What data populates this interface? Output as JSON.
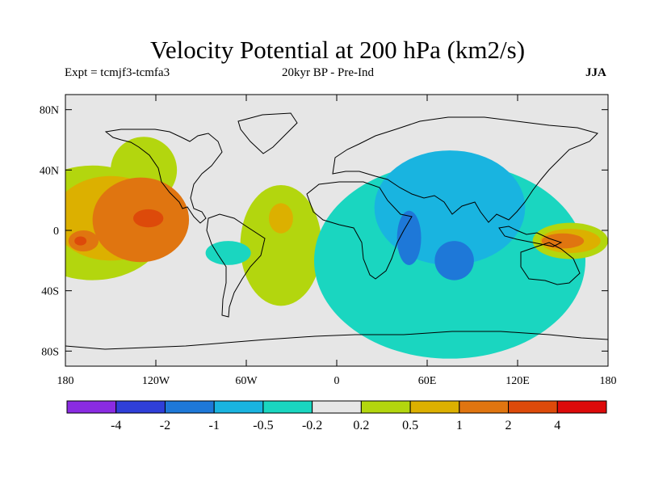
{
  "chart_data": {
    "type": "heatmap",
    "title": "Velocity Potential at 200 hPa (km2/s)",
    "subtitle_left": "Expt = tcmjf3-tcmfa3",
    "subtitle_center": "20kyr BP - Pre-Ind",
    "subtitle_right": "JJA",
    "xlim": [
      -180,
      180
    ],
    "ylim": [
      -90,
      90
    ],
    "x_ticks": [
      {
        "value": -180,
        "label": "180"
      },
      {
        "value": -120,
        "label": "120W"
      },
      {
        "value": -60,
        "label": "60W"
      },
      {
        "value": 0,
        "label": "0"
      },
      {
        "value": 60,
        "label": "60E"
      },
      {
        "value": 120,
        "label": "120E"
      },
      {
        "value": 180,
        "label": "180"
      }
    ],
    "y_ticks": [
      {
        "value": 80,
        "label": "80N"
      },
      {
        "value": 40,
        "label": "40N"
      },
      {
        "value": 0,
        "label": "0"
      },
      {
        "value": -40,
        "label": "40S"
      },
      {
        "value": -80,
        "label": "80S"
      }
    ],
    "colorbar": {
      "colors": [
        "#8a2be2",
        "#2f3fd8",
        "#1e78d8",
        "#19b4e0",
        "#1ad6c0",
        "#e6e6e6",
        "#b3d60e",
        "#dcb000",
        "#e07510",
        "#dd4a0a",
        "#dd0a0a"
      ],
      "labels": [
        "-4",
        "-2",
        "-1",
        "-0.5",
        "-0.2",
        "0.2",
        "0.5",
        "1",
        "2",
        "4"
      ]
    },
    "contour_regions": [
      {
        "lon": -162,
        "lat": 5,
        "rx": 50,
        "ry": 38,
        "value": 0.5
      },
      {
        "lon": -128,
        "lat": 40,
        "rx": 22,
        "ry": 22,
        "value": 0.5
      },
      {
        "lon": -150,
        "lat": 8,
        "rx": 38,
        "ry": 28,
        "value": 1
      },
      {
        "lon": -130,
        "lat": 7,
        "rx": 32,
        "ry": 28,
        "value": 2
      },
      {
        "lon": -168,
        "lat": -7,
        "rx": 10,
        "ry": 7,
        "value": 2
      },
      {
        "lon": -125,
        "lat": 8,
        "rx": 10,
        "ry": 6,
        "value": 4
      },
      {
        "lon": -170,
        "lat": -7,
        "rx": 4,
        "ry": 3,
        "value": 4
      },
      {
        "lon": -37,
        "lat": -10,
        "rx": 27,
        "ry": 40,
        "value": 0.5
      },
      {
        "lon": -37,
        "lat": 8,
        "rx": 8,
        "ry": 10,
        "value": 1
      },
      {
        "lon": -72,
        "lat": -15,
        "rx": 15,
        "ry": 8,
        "value": -0.2
      },
      {
        "lon": 75,
        "lat": -20,
        "rx": 90,
        "ry": 65,
        "value": -0.2
      },
      {
        "lon": 75,
        "lat": 15,
        "rx": 50,
        "ry": 38,
        "value": -0.5
      },
      {
        "lon": 48,
        "lat": -5,
        "rx": 8,
        "ry": 18,
        "value": -1
      },
      {
        "lon": 78,
        "lat": -20,
        "rx": 13,
        "ry": 13,
        "value": -1
      },
      {
        "lon": 155,
        "lat": -7,
        "rx": 25,
        "ry": 12,
        "value": 0.5
      },
      {
        "lon": 155,
        "lat": -7,
        "rx": 20,
        "ry": 8,
        "value": 1
      },
      {
        "lon": 150,
        "lat": -7,
        "rx": 14,
        "ry": 5,
        "value": 2
      }
    ]
  }
}
